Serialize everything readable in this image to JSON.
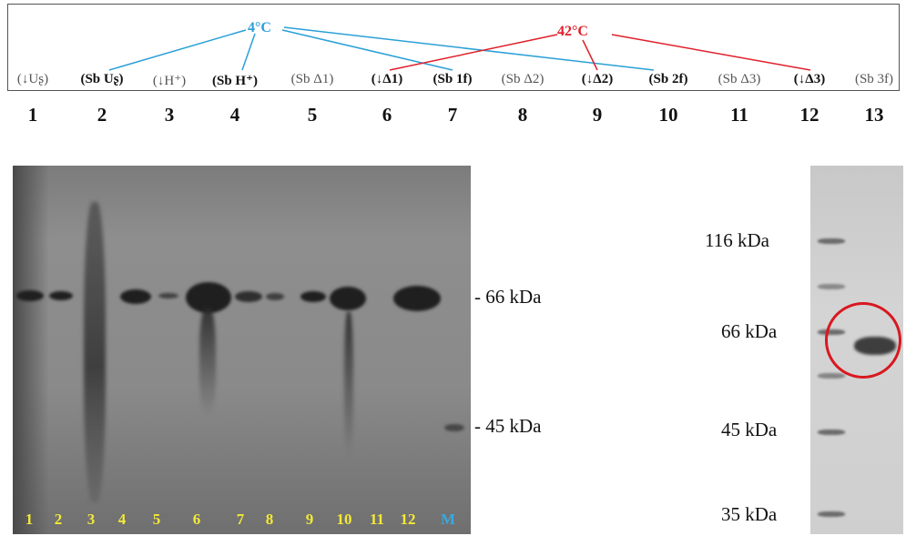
{
  "header": {
    "temp_4": "4°C",
    "temp_42": "42°C",
    "temp_4_color": "#2aa0d8",
    "temp_42_color": "#e0202a",
    "lanes": [
      {
        "num": "1",
        "label": "(↓Uʂ)",
        "bold": false
      },
      {
        "num": "2",
        "label": "(Sb Uʂ)",
        "bold": true
      },
      {
        "num": "3",
        "label": "(↓H⁺)",
        "bold": false
      },
      {
        "num": "4",
        "label": "(Sb H⁺)",
        "bold": true
      },
      {
        "num": "5",
        "label": "(Sb Δ1)",
        "bold": false
      },
      {
        "num": "6",
        "label": "(↓Δ1)",
        "bold": true
      },
      {
        "num": "7",
        "label": "(Sb 1f)",
        "bold": true
      },
      {
        "num": "8",
        "label": "(Sb Δ2)",
        "bold": false
      },
      {
        "num": "9",
        "label": "(↓Δ2)",
        "bold": true
      },
      {
        "num": "10",
        "label": "(Sb 2f)",
        "bold": true
      },
      {
        "num": "11",
        "label": "(Sb Δ3)",
        "bold": false
      },
      {
        "num": "12",
        "label": "(↓Δ3)",
        "bold": true
      },
      {
        "num": "13",
        "label": "(Sb 3f)",
        "bold": false
      }
    ]
  },
  "left_gel": {
    "lane_numbers": [
      "1",
      "2",
      "3",
      "4",
      "5",
      "6",
      "7",
      "8",
      "9",
      "10",
      "11",
      "12",
      "M"
    ],
    "marker_66": "- 66 kDa",
    "marker_45": "- 45 kDa",
    "lane_number_color": "#f2e83a",
    "marker_lane_color": "#3aa8e0"
  },
  "right_gel": {
    "marker_116": "116 kDa",
    "marker_66": "66 kDa",
    "marker_45": "45 kDa",
    "marker_35": "35 kDa",
    "highlight_color": "#d81820"
  }
}
